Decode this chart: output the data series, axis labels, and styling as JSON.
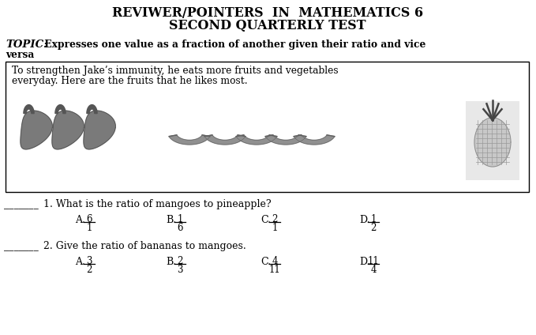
{
  "title_line1": "REVIWER/POINTERS  IN  MATHEMATICS 6",
  "title_line2": "SECOND QUARTERLY TEST",
  "topic_bold": "TOPIC:",
  "topic_rest": " Expresses one value as a fraction of another given their ratio and vice",
  "topic_wrap": "versa",
  "box_text_line1": "To strengthen Jake’s immunity, he eats more fruits and vegetables",
  "box_text_line2": "everyday. Here are the fruits that he likes most.",
  "q1_blank": "_______",
  "q1_text": "1. What is the ratio of mangoes to pineapple?",
  "q1_nums": [
    "6",
    "1",
    "2",
    "1"
  ],
  "q1_dens": [
    "1",
    "6",
    "1",
    "2"
  ],
  "q2_blank": "_______",
  "q2_text": "2. Give the ratio of bananas to mangoes.",
  "q2_nums": [
    "3",
    "2",
    "4",
    "11"
  ],
  "q2_dens": [
    "2",
    "3",
    "11",
    "4"
  ],
  "letters": [
    "A.",
    "B.",
    "C.",
    "D."
  ],
  "bg_color": "#ffffff",
  "text_color": "#000000",
  "gray_dark": "#555555",
  "gray_mid": "#888888",
  "gray_light": "#bbbbbb"
}
